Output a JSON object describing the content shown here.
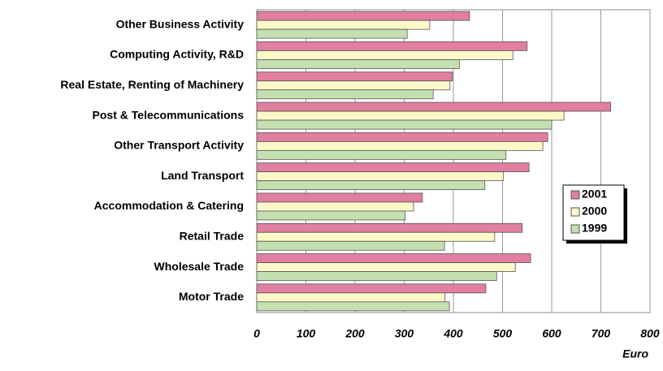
{
  "chart_data": {
    "type": "bar",
    "orientation": "horizontal",
    "categories": [
      "Other Business Activity",
      "Computing Activity, R&D",
      "Real Estate, Renting of Machinery",
      "Post & Telecommunications",
      "Other Transport Activity",
      "Land Transport",
      "Accommodation & Catering",
      "Retail Trade",
      "Wholesale Trade",
      "Motor Trade"
    ],
    "series": [
      {
        "name": "2001",
        "color": "#e07fa0",
        "values": [
          433,
          550,
          398,
          720,
          592,
          554,
          337,
          540,
          557,
          466
        ]
      },
      {
        "name": "2000",
        "color": "#fdf8c8",
        "values": [
          352,
          521,
          393,
          625,
          582,
          502,
          319,
          484,
          526,
          383
        ]
      },
      {
        "name": "1999",
        "color": "#c4e0b0",
        "values": [
          306,
          412,
          359,
          600,
          507,
          464,
          302,
          382,
          488,
          392
        ]
      }
    ],
    "x_label": "Euro",
    "xlim": [
      0,
      800
    ],
    "xticks": [
      0,
      100,
      200,
      300,
      400,
      500,
      600,
      700,
      800
    ],
    "grid": true,
    "legend": "right"
  }
}
